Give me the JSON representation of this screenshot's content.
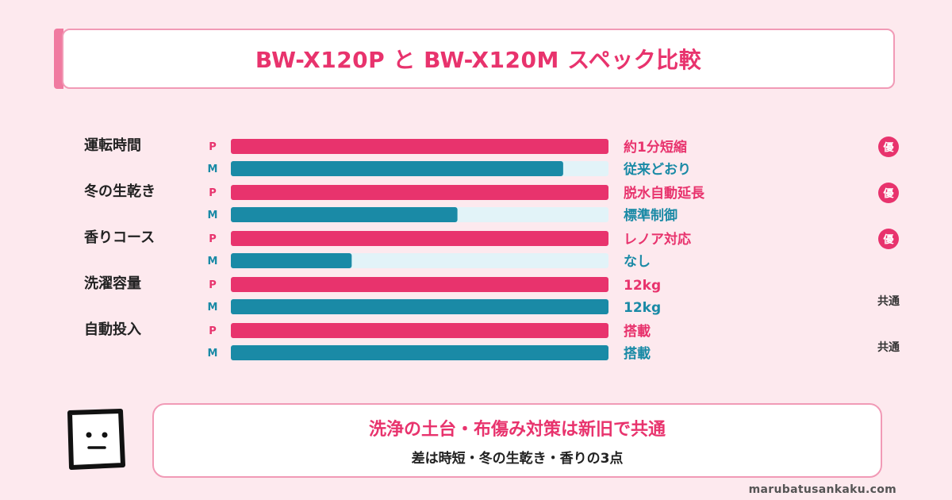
{
  "title": "BW-X120P と BW-X120M スペック比較",
  "colors": {
    "p": "#e8336d",
    "m": "#1a8aa6",
    "track": "#e2f3f8",
    "badge": "#e8336d"
  },
  "chart_data": {
    "type": "bar",
    "orientation": "horizontal",
    "categories": [
      "運転時間",
      "冬の生乾き",
      "香りコース",
      "洗濯容量",
      "自動投入"
    ],
    "xlim": [
      0,
      100
    ],
    "series": [
      {
        "name": "P",
        "values": [
          100,
          100,
          100,
          100,
          100
        ],
        "value_labels": [
          "約1分短縮",
          "脱水自動延長",
          "レノア対応",
          "12kg",
          "搭載"
        ]
      },
      {
        "name": "M",
        "values": [
          88,
          60,
          32,
          100,
          100
        ],
        "value_labels": [
          "従来どおり",
          "標準制御",
          "なし",
          "12kg",
          "搭載"
        ]
      }
    ],
    "verdicts": [
      "優",
      "優",
      "優",
      "共通",
      "共通"
    ],
    "verdict_styles": [
      "badge",
      "badge",
      "badge",
      "text",
      "text"
    ]
  },
  "summary": {
    "main": "洗浄の土台・布傷み対策は新旧で共通",
    "sub": "差は時短・冬の生乾き・香りの3点"
  },
  "footer": "marubatusankaku.com",
  "icons": {
    "mascot": "neutral-face-icon"
  }
}
